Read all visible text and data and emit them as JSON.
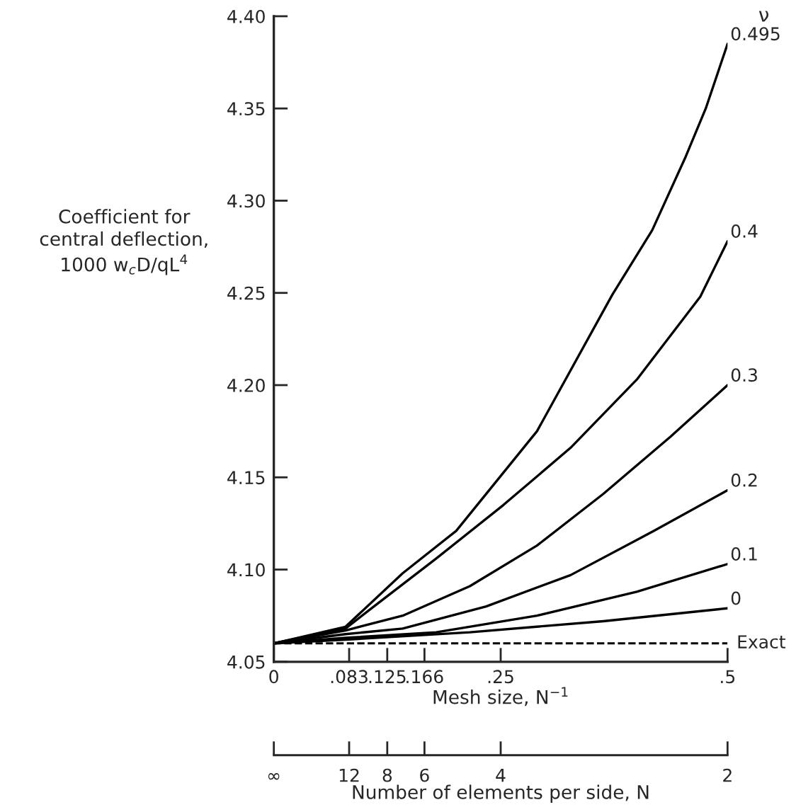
{
  "chart_data": {
    "type": "line",
    "xlabel": "Mesh size, N$^{−1}$",
    "x2label": "Number of elements per side, N",
    "ylabel": "Coefficient for\ncentral deflection,\n1000 w$_{c}$D/qL$^{4}$",
    "legend_title": "ν",
    "legend": false,
    "grid": false,
    "marker": "none",
    "line_style": "solid",
    "xlim": [
      0,
      0.5
    ],
    "ylim": [
      4.05,
      4.4
    ],
    "xticks": [
      0,
      {
        "value": 0.083,
        "label": ".083"
      },
      {
        "value": 0.125,
        "label": ".125"
      },
      {
        "value": 0.166,
        "label": ".166"
      },
      {
        "value": 0.25,
        "label": ".25"
      },
      {
        "value": 0.5,
        "label": ".5"
      }
    ],
    "yticks": [
      {
        "value": 4.05,
        "label": "4.05"
      },
      {
        "value": 4.1,
        "label": "4.10"
      },
      {
        "value": 4.15,
        "label": "4.15"
      },
      {
        "value": 4.2,
        "label": "4.20"
      },
      {
        "value": 4.25,
        "label": "4.25"
      },
      {
        "value": 4.3,
        "label": "4.30"
      },
      {
        "value": 4.35,
        "label": "4.35"
      },
      {
        "value": 4.4,
        "label": "4.40"
      }
    ],
    "annotations": [
      "∞",
      "12",
      "8",
      "6",
      "4",
      "2"
    ],
    "series": [
      {
        "name": "0.495",
        "color": "#000000",
        "x": [
          0,
          0.079,
          0.142,
          0.201,
          0.29,
          0.373,
          0.417,
          0.454,
          0.476,
          0.5
        ],
        "values": [
          4.06,
          4.069,
          4.098,
          4.121,
          4.175,
          4.249,
          4.284,
          4.324,
          4.35,
          4.385
        ]
      },
      {
        "name": "0.4",
        "color": "#000000",
        "x": [
          0,
          0.079,
          0.105,
          0.179,
          0.253,
          0.327,
          0.4,
          0.47,
          0.5
        ],
        "values": [
          4.06,
          4.068,
          4.078,
          4.106,
          4.135,
          4.166,
          4.203,
          4.248,
          4.278
        ]
      },
      {
        "name": "0.3",
        "color": "#000000",
        "x": [
          0,
          0.079,
          0.142,
          0.216,
          0.29,
          0.363,
          0.437,
          0.5
        ],
        "values": [
          4.06,
          4.067,
          4.075,
          4.091,
          4.113,
          4.141,
          4.172,
          4.2
        ]
      },
      {
        "name": "0.2",
        "color": "#000000",
        "x": [
          0,
          0.079,
          0.142,
          0.234,
          0.327,
          0.419,
          0.5
        ],
        "values": [
          4.06,
          4.065,
          4.068,
          4.08,
          4.097,
          4.121,
          4.143
        ]
      },
      {
        "name": "0.1",
        "color": "#000000",
        "x": [
          0,
          0.079,
          0.179,
          0.29,
          0.4,
          0.5
        ],
        "values": [
          4.06,
          4.063,
          4.066,
          4.075,
          4.088,
          4.103
        ]
      },
      {
        "name": "0",
        "color": "#000000",
        "x": [
          0,
          0.079,
          0.216,
          0.363,
          0.5
        ],
        "values": [
          4.06,
          4.062,
          4.066,
          4.072,
          4.079
        ]
      }
    ],
    "ref_lines": [
      {
        "axis": "y",
        "value": 4.06,
        "label": "Exact",
        "color": "#000000",
        "line_style": "dashed"
      }
    ]
  }
}
